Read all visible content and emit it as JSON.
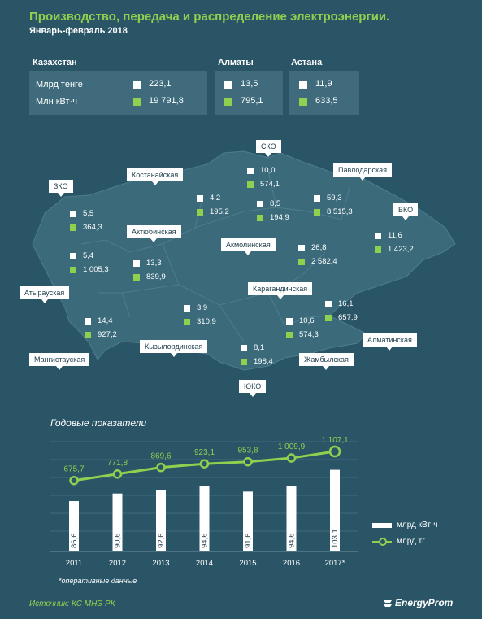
{
  "header": {
    "title": "Производство, передача и распределение электроэнергии.",
    "subtitle": "Январь-февраль   2018"
  },
  "summary": {
    "kz": {
      "name": "Казахстан",
      "label_money": "Млрд тенге",
      "label_energy": "Млн кВт·ч",
      "money": "223,1",
      "energy": "19 791,8"
    },
    "almaty": {
      "name": "Алматы",
      "money": "13,5",
      "energy": "795,1"
    },
    "astana": {
      "name": "Астана",
      "money": "11,9",
      "energy": "633,5"
    }
  },
  "regions": [
    {
      "name": "ЗКО",
      "money": "5,5",
      "energy": "364,3"
    },
    {
      "name": "Атырауская",
      "money": "5,4",
      "energy": "1 005,3"
    },
    {
      "name": "Мангистауская",
      "money": "14,4",
      "energy": "927,2"
    },
    {
      "name": "Актюбинская",
      "money": "13,3",
      "energy": "839,9"
    },
    {
      "name": "Костанайская",
      "money": "4,2",
      "energy": "195,2"
    },
    {
      "name": "СКО",
      "money": "10,0",
      "energy": "574,1"
    },
    {
      "name": "Акмолинская",
      "money": "8,5",
      "energy": "194,9"
    },
    {
      "name": "Павлодарская",
      "money": "59,3",
      "energy": "8 515,3"
    },
    {
      "name": "ВКО",
      "money": "11,6",
      "energy": "1 423,2"
    },
    {
      "name": "Карагандинская",
      "money": "26,8",
      "energy": "2 582,4"
    },
    {
      "name": "Кызылординская",
      "money": "3,9",
      "energy": "310,9"
    },
    {
      "name": "ЮКО",
      "money": "8,1",
      "energy": "198,4"
    },
    {
      "name": "Жамбылская",
      "money": "10,6",
      "energy": "574,3"
    },
    {
      "name": "Алматинская",
      "money": "16,1",
      "energy": "657,9"
    }
  ],
  "colors": {
    "background": "#2a5566",
    "panel": "#3f6b7c",
    "map": "#3b6a7b",
    "accent": "#8fd14f",
    "bar": "#ffffff"
  },
  "chart_data": {
    "type": "bar",
    "title": "Годовые показатели",
    "categories": [
      "2011",
      "2012",
      "2013",
      "2014",
      "2015",
      "2016",
      "2017*"
    ],
    "series": [
      {
        "name": "млрд кВт·ч",
        "type": "bar",
        "values": [
          86.6,
          90.6,
          92.6,
          94.6,
          91.6,
          94.6,
          103.1
        ],
        "labels": [
          "86,6",
          "90,6",
          "92,6",
          "94,6",
          "91,6",
          "94,6",
          "103,1"
        ]
      },
      {
        "name": "млрд тг",
        "type": "line",
        "values": [
          675.7,
          771.8,
          869.6,
          923.1,
          953.8,
          1009.9,
          1107.1
        ],
        "labels": [
          "675,7",
          "771,8",
          "869,6",
          "923,1",
          "953,8",
          "1 009,9",
          "1 107,1"
        ]
      }
    ],
    "grid": true,
    "legend": "right"
  },
  "footer": {
    "note": "*оперативные данные",
    "source": "Источник: КС МНЭ РК",
    "logo": "EnergyProm"
  }
}
